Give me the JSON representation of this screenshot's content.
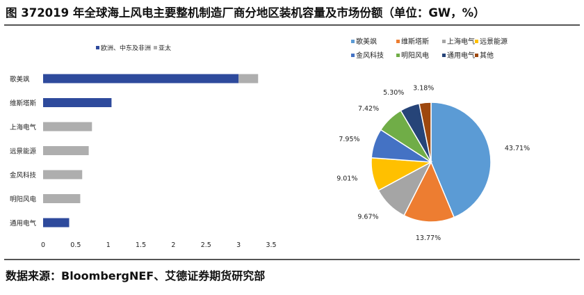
{
  "title": "图 372019 年全球海上风电主要整机制造厂商分地区装机容量及市场份额（单位：GW，%）",
  "source": "数据来源：BloombergNEF、艾德证券期货研究部",
  "colors": {
    "europe_china_africa": "#2E4A9C",
    "asia_pacific": "#AEAEAE"
  },
  "chart_data": [
    {
      "type": "bar",
      "orientation": "horizontal",
      "stacked": true,
      "categories": [
        "歌美飒",
        "维斯塔斯",
        "上海电气",
        "远景能源",
        "金风科技",
        "明阳风电",
        "通用电气"
      ],
      "series": [
        {
          "name": "欧洲、中东及非洲",
          "color": "#2E4A9C",
          "values": [
            3.0,
            1.05,
            0,
            0,
            0,
            0,
            0.4
          ]
        },
        {
          "name": "亚太",
          "color": "#AEAEAE",
          "values": [
            0.3,
            0,
            0.75,
            0.7,
            0.6,
            0.57,
            0
          ]
        }
      ],
      "xlim": [
        0,
        3.5
      ],
      "xticks": [
        "0",
        "0.5",
        "1",
        "1.5",
        "2",
        "2.5",
        "3",
        "3.5"
      ],
      "legend_position": "top",
      "grid": false
    },
    {
      "type": "pie",
      "categories": [
        "歌美飒",
        "维斯塔斯",
        "上海电气",
        "远景能源",
        "金风科技",
        "明阳风电",
        "通用电气",
        "其他"
      ],
      "values": [
        43.71,
        13.77,
        9.67,
        9.01,
        7.95,
        7.42,
        5.3,
        3.18
      ],
      "labels": [
        "43.71%",
        "13.77%",
        "9.67%",
        "9.01%",
        "7.95%",
        "7.42%",
        "5.30%",
        "3.18%"
      ],
      "colors": [
        "#5B9BD5",
        "#ED7D31",
        "#A5A5A5",
        "#FFC000",
        "#4472C4",
        "#70AD47",
        "#264478",
        "#9E480E"
      ],
      "legend_position": "top"
    }
  ]
}
